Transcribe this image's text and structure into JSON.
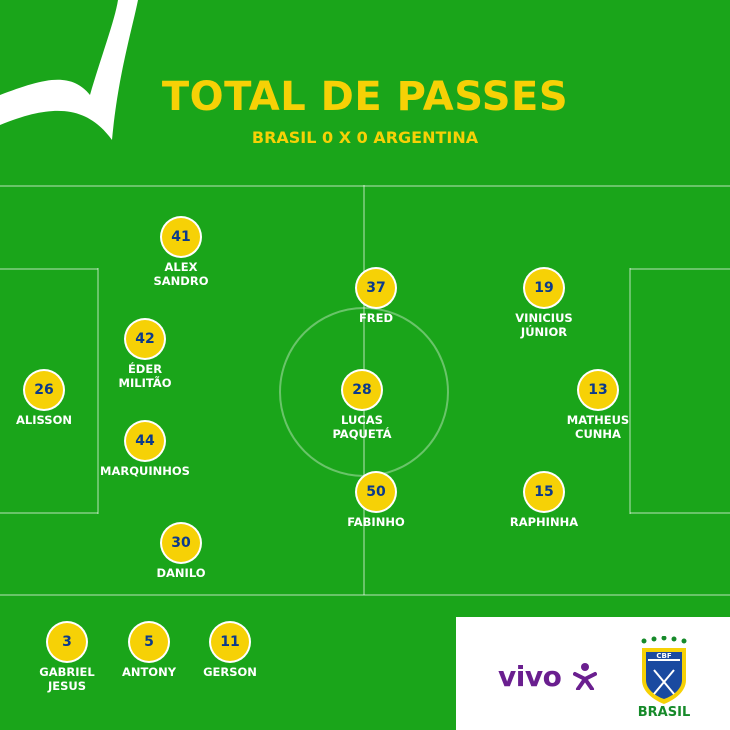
{
  "header": {
    "title": "TOTAL DE PASSES",
    "subtitle": "BRASIL 0 X 0 ARGENTINA"
  },
  "colors": {
    "field_green": "#1aa51a",
    "title_yellow": "#f6d106",
    "badge_text_blue": "#0b3a8c",
    "vivo_purple": "#6a1f8f",
    "cbf_green": "#168a2a"
  },
  "players": [
    {
      "passes": "41",
      "name": "ALEX\nSANDRO"
    },
    {
      "passes": "42",
      "name": "ÉDER\nMILITÃO"
    },
    {
      "passes": "26",
      "name": "ALISSON"
    },
    {
      "passes": "44",
      "name": "MARQUINHOS"
    },
    {
      "passes": "30",
      "name": "DANILO"
    },
    {
      "passes": "37",
      "name": "FRED"
    },
    {
      "passes": "28",
      "name": "LUCAS\nPAQUETÁ"
    },
    {
      "passes": "50",
      "name": "FABINHO"
    },
    {
      "passes": "19",
      "name": "VINICIUS\nJÚNIOR"
    },
    {
      "passes": "13",
      "name": "MATHEUS\nCUNHA"
    },
    {
      "passes": "15",
      "name": "RAPHINHA"
    }
  ],
  "substitutes": [
    {
      "passes": "3",
      "name": "GABRIEL\nJESUS"
    },
    {
      "passes": "5",
      "name": "ANTONY"
    },
    {
      "passes": "11",
      "name": "GERSON"
    }
  ],
  "sponsor": {
    "brand": "vivo",
    "icon": "vivo-figure-icon"
  },
  "crest": {
    "label": "BRASIL",
    "initials": "CBF",
    "icon": "cbf-crest-icon"
  }
}
